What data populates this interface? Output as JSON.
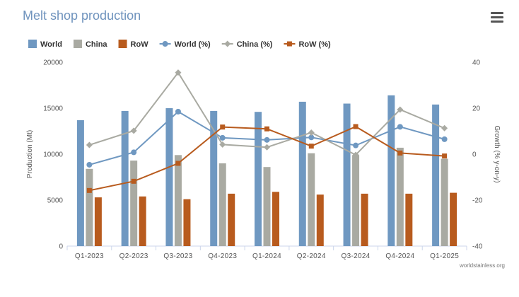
{
  "header": {
    "title": "Melt shop production"
  },
  "icons": {
    "menu": "hamburger-menu-icon"
  },
  "credit": "worldstainless.org",
  "chart_data": {
    "type": "bar",
    "title": "Melt shop production",
    "categories": [
      "Q1-2023",
      "Q2-2023",
      "Q3-2023",
      "Q4-2023",
      "Q1-2024",
      "Q2-2024",
      "Q3-2024",
      "Q4-2024",
      "Q1-2025"
    ],
    "ylabel": "Production (Mt)",
    "y2label": "Growth (% y-on-y)",
    "ylim": [
      0,
      20000
    ],
    "y2lim": [
      -40,
      40
    ],
    "yticks": [
      "0",
      "5000",
      "10000",
      "15000",
      "20000"
    ],
    "y2ticks": [
      "-40",
      "-20",
      "0",
      "20",
      "40"
    ],
    "legend_position": "top-left",
    "grid": false,
    "series": [
      {
        "name": "World",
        "kind": "bar",
        "color": "#6f98c1",
        "values": [
          13700,
          14700,
          15000,
          14700,
          14600,
          15700,
          15500,
          16400,
          15400
        ]
      },
      {
        "name": "China",
        "kind": "bar",
        "color": "#a9aaa2",
        "values": [
          8400,
          9300,
          9900,
          9000,
          8600,
          10100,
          9900,
          10700,
          9500
        ]
      },
      {
        "name": "RoW",
        "kind": "bar",
        "color": "#b85b1e",
        "values": [
          5300,
          5400,
          5100,
          5700,
          5900,
          5600,
          5700,
          5700,
          5800
        ]
      },
      {
        "name": "World (%)",
        "kind": "line",
        "axis": "y2",
        "color": "#6f98c1",
        "marker": "circle",
        "values": [
          -4.6,
          0.8,
          18.5,
          7.1,
          6.2,
          7.3,
          3.8,
          11.9,
          6.5
        ]
      },
      {
        "name": "China (%)",
        "kind": "line",
        "axis": "y2",
        "color": "#a9aaa2",
        "marker": "diamond",
        "values": [
          4.0,
          10.2,
          35.5,
          4.2,
          3.0,
          9.4,
          -0.3,
          19.4,
          11.3
        ]
      },
      {
        "name": "RoW (%)",
        "kind": "line",
        "axis": "y2",
        "color": "#b85b1e",
        "marker": "square",
        "values": [
          -15.8,
          -11.8,
          -4.0,
          11.8,
          11.0,
          3.5,
          12.0,
          0.5,
          -0.8
        ]
      }
    ]
  }
}
